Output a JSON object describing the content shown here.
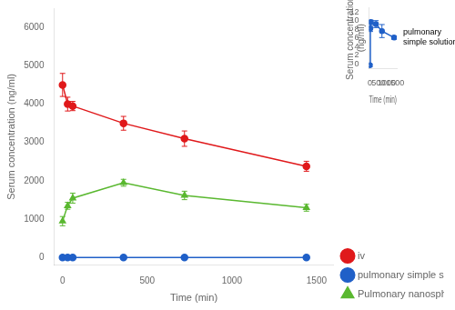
{
  "chart_data": [
    {
      "type": "line",
      "xlabel": "Time (min)",
      "ylabel": "Serum concentration (ng/ml)",
      "x": [
        0,
        30,
        60,
        360,
        720,
        1440
      ],
      "xlim": [
        -50,
        1600
      ],
      "ylim": [
        -200,
        6500
      ],
      "xticks": [
        0,
        500,
        1000,
        1500
      ],
      "yticks": [
        0,
        1000,
        2000,
        3000,
        4000,
        5000,
        6000
      ],
      "grid": false,
      "legend": "lower right",
      "series": [
        {
          "name": "iv",
          "color": "#e0191b",
          "marker": "circle",
          "values": [
            4500,
            4000,
            3950,
            3500,
            3100,
            2380
          ],
          "yerr": [
            300,
            180,
            120,
            180,
            200,
            130
          ]
        },
        {
          "name": "pulmonary simple solution",
          "color": "#2060c8",
          "marker": "circle",
          "values": [
            0,
            0,
            0,
            0,
            0,
            0
          ],
          "yerr": [
            15,
            15,
            15,
            15,
            15,
            15
          ]
        },
        {
          "name": "Pulmonary nanospheres",
          "color": "#5ab830",
          "marker": "triangle",
          "values": [
            950,
            1350,
            1550,
            1950,
            1620,
            1300
          ],
          "yerr": [
            120,
            90,
            130,
            90,
            110,
            90
          ]
        }
      ]
    },
    {
      "type": "line",
      "xlabel": "Time (min)",
      "ylabel": "Serum concentration\n(ng/ml)",
      "x": [
        0,
        30,
        60,
        360,
        720,
        1440
      ],
      "xlim": [
        -50,
        1600
      ],
      "ylim": [
        -1,
        13
      ],
      "xticks": [
        0,
        500,
        1000,
        1500
      ],
      "yticks": [
        0,
        2,
        4,
        6,
        8,
        10,
        12
      ],
      "grid": false,
      "series": [
        {
          "color": "#2060c8",
          "marker": "circle",
          "values": [
            -0.3,
            8.2,
            9.7,
            9.2,
            7.6,
            6.1
          ],
          "yerr": [
            0.3,
            0.7,
            0.4,
            0.8,
            1.5,
            0.4
          ]
        }
      ],
      "annotations": [
        {
          "text": "pulmonary\nsimple solution",
          "x": 1440,
          "y": 6.1
        }
      ]
    }
  ]
}
